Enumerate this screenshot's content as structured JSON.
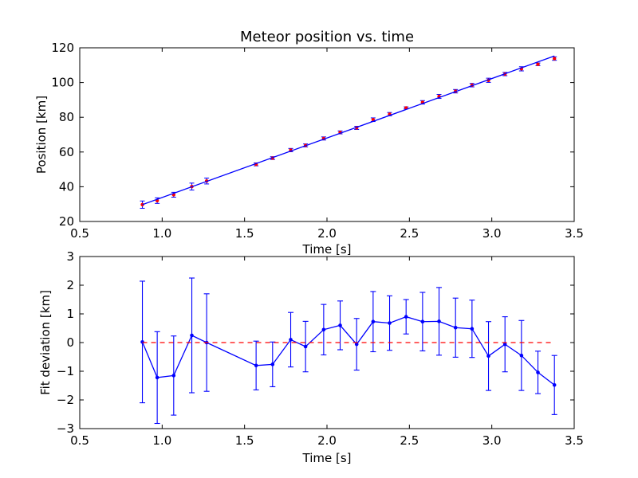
{
  "colors": {
    "fit_line": "#0000ff",
    "measurement": "#ff0000",
    "errorbar": "#0000ff",
    "zero_line": "#ff0000"
  },
  "chart_data": [
    {
      "type": "scatter",
      "title": "Meteor position vs. time",
      "xlabel": "Time [s]",
      "ylabel": "Position [km]",
      "xlim": [
        0.5,
        3.5
      ],
      "ylim": [
        20,
        120
      ],
      "xticks": [
        0.5,
        1.0,
        1.5,
        2.0,
        2.5,
        3.0,
        3.5
      ],
      "xtick_labels": [
        "0.5",
        "1.0",
        "1.5",
        "2.0",
        "2.5",
        "3.0",
        "3.5"
      ],
      "yticks": [
        20,
        40,
        60,
        80,
        100,
        120
      ],
      "ytick_labels": [
        "20",
        "40",
        "60",
        "80",
        "100",
        "120"
      ],
      "grid": false,
      "series": [
        {
          "kind": "errorbar-points",
          "x": [
            0.88,
            0.97,
            1.07,
            1.18,
            1.27,
            1.57,
            1.67,
            1.78,
            1.87,
            1.98,
            2.08,
            2.18,
            2.28,
            2.38,
            2.48,
            2.58,
            2.68,
            2.78,
            2.88,
            2.98,
            3.08,
            3.18,
            3.28,
            3.38
          ],
          "y": [
            29.7,
            32.0,
            35.4,
            40.1,
            43.3,
            52.9,
            56.5,
            61.1,
            63.8,
            67.8,
            71.3,
            73.9,
            78.6,
            81.8,
            85.4,
            88.6,
            92.0,
            95.0,
            98.5,
            101.3,
            104.9,
            107.9,
            110.5,
            113.8
          ],
          "yerr": [
            2.1,
            1.6,
            1.4,
            2.0,
            1.7,
            0.85,
            0.8,
            0.95,
            0.85,
            0.9,
            0.85,
            0.9,
            1.05,
            0.95,
            0.6,
            1.0,
            1.15,
            1.0,
            1.0,
            1.2,
            0.95,
            1.2,
            0.75,
            1.0
          ]
        },
        {
          "kind": "fit-line",
          "x": [
            0.88,
            3.38
          ],
          "y": [
            29.7,
            115.3
          ]
        }
      ]
    },
    {
      "type": "line",
      "title": "",
      "xlabel": "Time [s]",
      "ylabel": "Fit deviation [km]",
      "xlim": [
        0.5,
        3.5
      ],
      "ylim": [
        -3,
        3
      ],
      "xticks": [
        0.5,
        1.0,
        1.5,
        2.0,
        2.5,
        3.0,
        3.5
      ],
      "xtick_labels": [
        "0.5",
        "1.0",
        "1.5",
        "2.0",
        "2.5",
        "3.0",
        "3.5"
      ],
      "yticks": [
        -3,
        -2,
        -1,
        0,
        1,
        2,
        3
      ],
      "ytick_labels": [
        "−3",
        "−2",
        "−1",
        "0",
        "1",
        "2",
        "3"
      ],
      "grid": false,
      "series": [
        {
          "kind": "errorbar-line",
          "x": [
            0.88,
            0.97,
            1.07,
            1.18,
            1.27,
            1.57,
            1.67,
            1.78,
            1.87,
            1.98,
            2.08,
            2.18,
            2.28,
            2.38,
            2.48,
            2.58,
            2.68,
            2.78,
            2.88,
            2.98,
            3.08,
            3.18,
            3.28,
            3.38
          ],
          "y": [
            0.02,
            -1.22,
            -1.15,
            0.25,
            0.0,
            -0.8,
            -0.76,
            0.1,
            -0.14,
            0.45,
            0.6,
            -0.06,
            0.73,
            0.68,
            0.9,
            0.73,
            0.74,
            0.52,
            0.48,
            -0.47,
            -0.06,
            -0.45,
            -1.04,
            -1.48
          ],
          "yerr": [
            2.12,
            1.6,
            1.38,
            2.0,
            1.7,
            0.85,
            0.78,
            0.95,
            0.88,
            0.88,
            0.85,
            0.9,
            1.05,
            0.95,
            0.6,
            1.02,
            1.18,
            1.03,
            1.0,
            1.2,
            0.96,
            1.22,
            0.74,
            1.03
          ]
        },
        {
          "kind": "reference-line",
          "x": [
            0.88,
            3.38
          ],
          "y": [
            0,
            0
          ]
        }
      ]
    }
  ]
}
